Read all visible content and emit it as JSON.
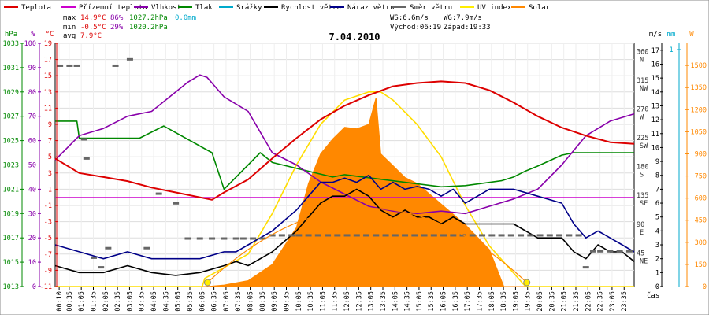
{
  "chart_data": {
    "type": "line",
    "title": "7.04.2010",
    "xlabel": "čas",
    "legend": [
      {
        "name": "Teplota",
        "color": "#dd0000"
      },
      {
        "name": "Přízemní teplota",
        "color": "#cc00cc"
      },
      {
        "name": "Vlhkost",
        "color": "#8800aa"
      },
      {
        "name": "Tlak",
        "color": "#008800"
      },
      {
        "name": "Srážky",
        "color": "#00aacc"
      },
      {
        "name": "Rychlost větru",
        "color": "#000000"
      },
      {
        "name": "Náraz větru",
        "color": "#000088"
      },
      {
        "name": "Směr větru",
        "color": "#666666"
      },
      {
        "name": "UV index",
        "color": "#ffee00"
      },
      {
        "name": "Solar",
        "color": "#ff8800"
      }
    ],
    "stats": {
      "max_label": "max",
      "max_temp": "14.9°C",
      "max_hum": "86%",
      "max_press": "1027.2hPa",
      "rain": "0.0mm",
      "min_label": "min",
      "min_temp": "-0.5°C",
      "min_hum": "29%",
      "min_press": "1020.2hPa",
      "avg_label": "avg",
      "avg_temp": "7.9°C",
      "ws": "WS:6.6m/s",
      "wg": "WG:7.9m/s",
      "sunrise": "Východ:06:19",
      "sunset": "Západ:19:33"
    },
    "axes": {
      "hpa": {
        "title": "hPa",
        "ticks": [
          "1033",
          "1031",
          "1029",
          "1027",
          "1025",
          "1023",
          "1021",
          "1019",
          "1017",
          "1015",
          "1013"
        ]
      },
      "pct": {
        "title": "%",
        "ticks": [
          "100",
          "90",
          "80",
          "70",
          "60",
          "50",
          "40",
          "30",
          "20",
          "10",
          "0"
        ]
      },
      "degc": {
        "title": "°C",
        "ticks": [
          "19",
          "17",
          "15",
          "13",
          "11",
          "9",
          "7",
          "5",
          "3",
          "1",
          "-1",
          "-3",
          "-5",
          "-7",
          "-9",
          "-11"
        ]
      },
      "ms": {
        "title": "m/s",
        "ticks": [
          "17",
          "16",
          "15",
          "14",
          "13",
          "12",
          "11",
          "10",
          "9",
          "8",
          "7",
          "6",
          "5",
          "4",
          "3",
          "2",
          "1",
          "0"
        ]
      },
      "mm": {
        "title": "mm",
        "ticks": [
          "1"
        ]
      },
      "w": {
        "title": "W",
        "ticks": [
          "1500",
          "1350",
          "1200",
          "1050",
          "900",
          "750",
          "600",
          "450",
          "300",
          "150",
          "0"
        ]
      },
      "dir": {
        "ticks": [
          {
            "deg": "360",
            "lbl": "N"
          },
          {
            "deg": "315",
            "lbl": "NW"
          },
          {
            "deg": "270",
            "lbl": "W"
          },
          {
            "deg": "225",
            "lbl": "SW"
          },
          {
            "deg": "180",
            "lbl": "S"
          },
          {
            "deg": "135",
            "lbl": "SE"
          },
          {
            "deg": "90",
            "lbl": "E"
          },
          {
            "deg": "45",
            "lbl": "NE"
          }
        ]
      }
    },
    "x_ticks": [
      "00:10",
      "00:35",
      "01:05",
      "01:35",
      "02:05",
      "02:35",
      "03:05",
      "03:35",
      "04:05",
      "04:35",
      "05:05",
      "05:35",
      "06:05",
      "06:35",
      "07:05",
      "07:35",
      "08:05",
      "08:35",
      "09:05",
      "09:35",
      "10:05",
      "10:35",
      "11:05",
      "11:35",
      "12:05",
      "12:35",
      "13:05",
      "13:35",
      "14:05",
      "14:35",
      "15:05",
      "15:35",
      "16:05",
      "16:35",
      "17:05",
      "17:35",
      "18:05",
      "18:35",
      "19:05",
      "19:35",
      "20:05",
      "20:35",
      "21:05",
      "21:35",
      "22:05",
      "22:35",
      "23:05",
      "23:35"
    ],
    "series": {
      "temperature": {
        "unit": "°C",
        "x_hours": [
          0,
          1,
          2,
          3,
          4,
          5,
          6,
          6.5,
          7,
          8,
          9,
          10,
          11,
          12,
          13,
          14,
          15,
          16,
          17,
          18,
          19,
          20,
          21,
          22,
          23,
          24
        ],
        "values": [
          4.8,
          3,
          2.5,
          2,
          1.2,
          0.6,
          0,
          -0.3,
          0.6,
          2.2,
          4.8,
          7.3,
          9.6,
          11.3,
          12.6,
          13.7,
          14.1,
          14.3,
          14.1,
          13.2,
          11.7,
          10,
          8.6,
          7.6,
          6.8,
          6.6
        ]
      },
      "humidity": {
        "unit": "%",
        "x_hours": [
          0,
          1,
          2,
          3,
          4,
          5,
          5.5,
          6,
          6.3,
          7,
          8,
          9,
          10,
          11,
          12,
          13,
          14,
          15,
          16,
          17,
          18,
          19,
          20,
          21,
          22,
          23,
          24
        ],
        "values": [
          52,
          62,
          65,
          70,
          72,
          80,
          84,
          87,
          86,
          78,
          72,
          55,
          50,
          43,
          38,
          33,
          31,
          30,
          31,
          30,
          33,
          36,
          40,
          50,
          62,
          68,
          71
        ]
      },
      "pressure": {
        "unit": "hPa",
        "x_hours": [
          0,
          0.9,
          1.0,
          2.0,
          2.2,
          3.5,
          4.5,
          6.5,
          7.0,
          8.5,
          9.0,
          11.5,
          12,
          16,
          17,
          18.5,
          19,
          19.5,
          20,
          21,
          21.5,
          24
        ],
        "values": [
          1026.6,
          1026.6,
          1025.2,
          1025.2,
          1025.2,
          1025.2,
          1026.2,
          1024.0,
          1021.0,
          1024.0,
          1023.2,
          1022.0,
          1022.2,
          1021.2,
          1021.3,
          1021.7,
          1022.0,
          1022.5,
          1022.9,
          1023.8,
          1024.0,
          1024.0
        ]
      },
      "wind_speed": {
        "unit": "m/s",
        "x_hours": [
          0,
          1,
          2,
          3,
          4,
          5,
          6,
          7,
          7.5,
          8,
          9,
          10,
          10.5,
          11,
          11.5,
          12,
          12.5,
          13,
          13.5,
          14,
          14.5,
          15,
          15.5,
          16,
          16.5,
          17,
          18,
          19,
          20,
          21,
          21.5,
          22,
          22.5,
          23,
          23.5,
          24
        ],
        "values": [
          1.5,
          1.0,
          1.0,
          1.5,
          1.0,
          0.8,
          1.0,
          1.5,
          1.8,
          1.5,
          2.5,
          4.0,
          5.0,
          6.0,
          6.5,
          6.5,
          7.0,
          6.5,
          5.5,
          5.0,
          5.5,
          5.0,
          5.0,
          4.5,
          5.0,
          4.5,
          4.5,
          4.5,
          3.5,
          3.5,
          2.5,
          2.0,
          3.0,
          2.5,
          2.5,
          1.8
        ]
      },
      "wind_gust": {
        "unit": "m/s",
        "x_hours": [
          0,
          1,
          2,
          3,
          4,
          5,
          6,
          7,
          7.5,
          8,
          9,
          10,
          10.5,
          11,
          11.5,
          12,
          12.5,
          13,
          13.5,
          14,
          14.5,
          15,
          15.5,
          16,
          16.5,
          17,
          18,
          19,
          20,
          21,
          21.5,
          22,
          22.5,
          23,
          23.5,
          24
        ],
        "values": [
          3.0,
          2.5,
          2.0,
          2.5,
          2.0,
          2.0,
          2.0,
          2.5,
          2.5,
          3.0,
          4.0,
          5.5,
          6.5,
          7.5,
          7.5,
          7.8,
          7.5,
          8.0,
          7.0,
          7.5,
          7.0,
          7.2,
          7.0,
          6.5,
          7.0,
          6.0,
          7.0,
          7.0,
          6.5,
          6.0,
          4.5,
          3.5,
          4.0,
          3.5,
          3.0,
          2.5
        ]
      },
      "solar": {
        "unit": "W",
        "x_hours": [
          0,
          6.3,
          7,
          8,
          9,
          10,
          10.5,
          11,
          11.5,
          12,
          12.5,
          13,
          13.3,
          13.5,
          14,
          14.5,
          15,
          16,
          17,
          18,
          18.6,
          24
        ],
        "values": [
          0,
          0,
          10,
          40,
          150,
          400,
          700,
          900,
          1000,
          1080,
          1070,
          1100,
          1280,
          900,
          820,
          740,
          700,
          560,
          420,
          250,
          0,
          0
        ]
      },
      "uv_index": {
        "unit": "index",
        "x_hours": [
          0,
          6.1,
          6.2,
          8,
          9,
          10,
          11,
          12,
          13,
          13.5,
          14,
          15,
          16,
          17,
          18,
          19.5,
          19.6,
          24
        ],
        "values": [
          0,
          0,
          0.1,
          0.4,
          0.9,
          1.5,
          2.0,
          2.3,
          2.4,
          2.4,
          2.3,
          2.0,
          1.6,
          1.0,
          0.5,
          0,
          0,
          0
        ]
      },
      "wind_direction": {
        "unit": "deg",
        "points": [
          [
            0.2,
            345
          ],
          [
            0.6,
            345
          ],
          [
            0.9,
            345
          ],
          [
            1.2,
            230
          ],
          [
            1.3,
            200
          ],
          [
            1.6,
            45
          ],
          [
            1.9,
            30
          ],
          [
            2.2,
            60
          ],
          [
            2.5,
            345
          ],
          [
            3.1,
            355
          ],
          [
            3.8,
            60
          ],
          [
            4.3,
            145
          ],
          [
            5.0,
            130
          ],
          [
            5.5,
            75
          ],
          [
            6.0,
            75
          ],
          [
            6.5,
            75
          ],
          [
            7.0,
            75
          ],
          [
            7.5,
            75
          ],
          [
            7.8,
            75
          ],
          [
            8.2,
            75
          ],
          [
            8.6,
            75
          ],
          [
            9.0,
            80
          ],
          [
            9.4,
            80
          ],
          [
            9.8,
            80
          ],
          [
            10.1,
            80
          ],
          [
            10.5,
            80
          ],
          [
            10.9,
            80
          ],
          [
            11.3,
            80
          ],
          [
            11.7,
            80
          ],
          [
            12.1,
            80
          ],
          [
            12.5,
            80
          ],
          [
            12.9,
            80
          ],
          [
            13.3,
            80
          ],
          [
            13.7,
            80
          ],
          [
            14.1,
            80
          ],
          [
            14.5,
            80
          ],
          [
            14.9,
            80
          ],
          [
            15.3,
            80
          ],
          [
            15.7,
            80
          ],
          [
            16.1,
            80
          ],
          [
            16.5,
            80
          ],
          [
            16.9,
            80
          ],
          [
            17.3,
            80
          ],
          [
            17.7,
            80
          ],
          [
            18.1,
            80
          ],
          [
            18.5,
            80
          ],
          [
            18.9,
            80
          ],
          [
            19.3,
            80
          ],
          [
            19.7,
            80
          ],
          [
            20.1,
            80
          ],
          [
            20.5,
            80
          ],
          [
            20.9,
            80
          ],
          [
            21.3,
            80
          ],
          [
            21.7,
            80
          ],
          [
            22.0,
            30
          ],
          [
            22.3,
            55
          ],
          [
            22.6,
            55
          ],
          [
            23.0,
            55
          ],
          [
            23.4,
            55
          ],
          [
            23.8,
            55
          ]
        ]
      }
    },
    "reference_line": {
      "name": "0 °C",
      "value": 0
    }
  }
}
